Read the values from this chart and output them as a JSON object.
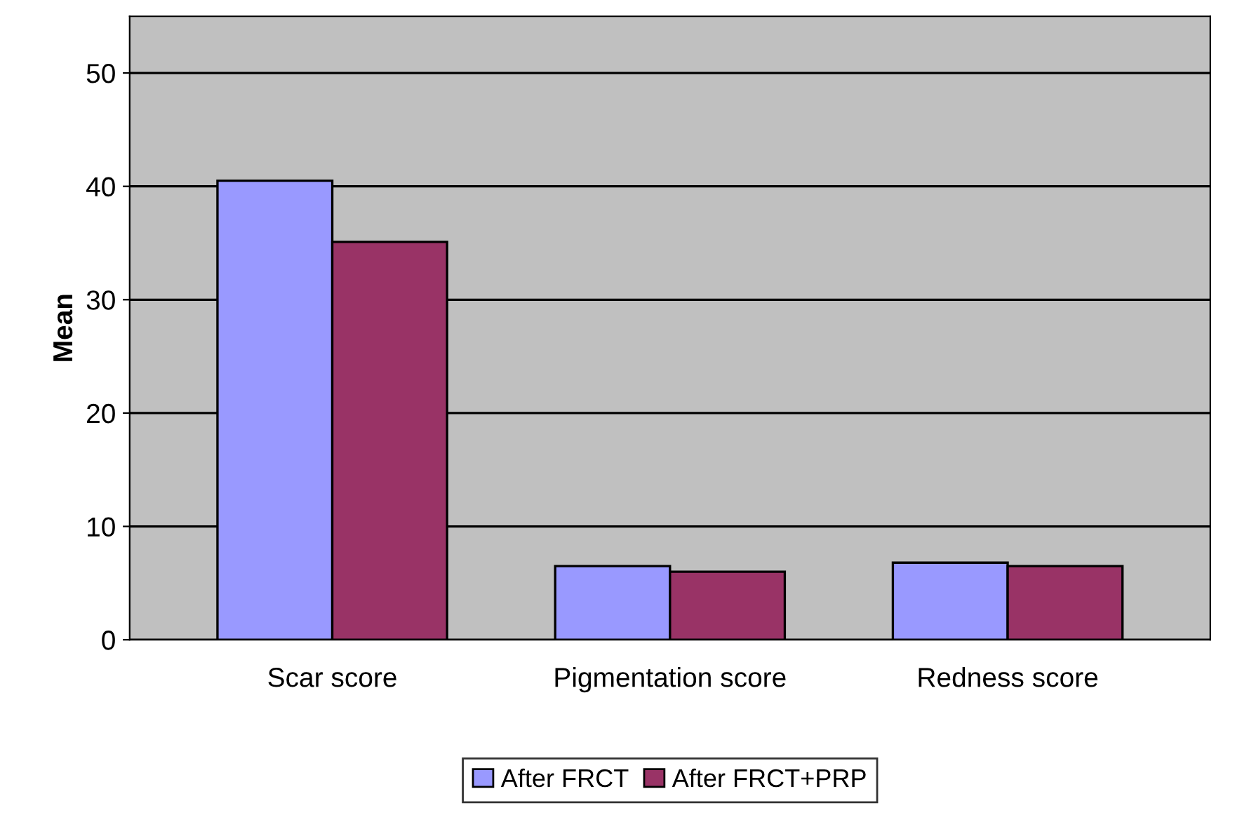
{
  "chart_data": {
    "type": "bar",
    "ylabel": "Mean",
    "categories": [
      "Scar score",
      "Pigmentation score",
      "Redness score"
    ],
    "series": [
      {
        "name": "After FRCT",
        "color": "#9999ff",
        "values": [
          40.5,
          6.5,
          6.8
        ]
      },
      {
        "name": "After FRCT+PRP",
        "color": "#993366",
        "values": [
          35.1,
          6.0,
          6.5
        ]
      }
    ],
    "ylim": [
      0,
      55
    ],
    "yticks": [
      0,
      10,
      20,
      30,
      40,
      50
    ],
    "grid": "y",
    "legend": "bottom"
  }
}
